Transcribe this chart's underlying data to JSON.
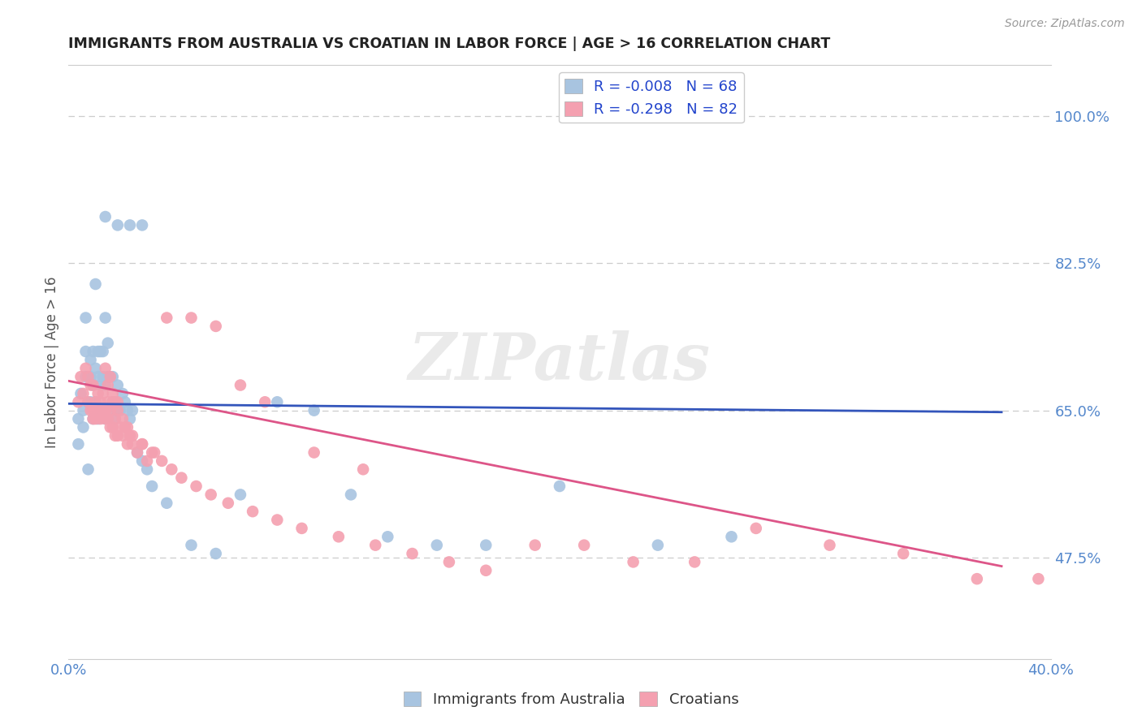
{
  "title": "IMMIGRANTS FROM AUSTRALIA VS CROATIAN IN LABOR FORCE | AGE > 16 CORRELATION CHART",
  "source": "Source: ZipAtlas.com",
  "ylabel": "In Labor Force | Age > 16",
  "xlim": [
    0.0,
    0.4
  ],
  "ylim": [
    0.355,
    1.06
  ],
  "hlines": [
    0.475,
    0.65,
    0.825,
    1.0
  ],
  "hline_color": "#cccccc",
  "background_color": "#ffffff",
  "australia_color": "#a8c4e0",
  "croatian_color": "#f4a0b0",
  "trend_australia_color": "#3355bb",
  "trend_croatian_color": "#dd5588",
  "watermark": "ZIPatlas",
  "aus_trend_x": [
    0.0,
    0.38
  ],
  "aus_trend_y": [
    0.658,
    0.648
  ],
  "cro_trend_x": [
    0.0,
    0.38
  ],
  "cro_trend_y": [
    0.685,
    0.465
  ],
  "australia_x": [
    0.004,
    0.004,
    0.005,
    0.006,
    0.006,
    0.007,
    0.007,
    0.007,
    0.008,
    0.008,
    0.008,
    0.009,
    0.009,
    0.009,
    0.01,
    0.01,
    0.01,
    0.011,
    0.011,
    0.011,
    0.012,
    0.012,
    0.012,
    0.013,
    0.013,
    0.013,
    0.014,
    0.014,
    0.015,
    0.015,
    0.015,
    0.016,
    0.016,
    0.017,
    0.017,
    0.018,
    0.018,
    0.019,
    0.019,
    0.02,
    0.02,
    0.021,
    0.022,
    0.023,
    0.024,
    0.025,
    0.026,
    0.028,
    0.03,
    0.032,
    0.034,
    0.04,
    0.05,
    0.06,
    0.07,
    0.085,
    0.1,
    0.115,
    0.13,
    0.15,
    0.17,
    0.2,
    0.24,
    0.27,
    0.03,
    0.025,
    0.02,
    0.015
  ],
  "australia_y": [
    0.64,
    0.61,
    0.67,
    0.65,
    0.63,
    0.69,
    0.72,
    0.76,
    0.66,
    0.69,
    0.58,
    0.66,
    0.69,
    0.71,
    0.64,
    0.68,
    0.72,
    0.66,
    0.7,
    0.8,
    0.64,
    0.69,
    0.72,
    0.65,
    0.68,
    0.72,
    0.69,
    0.72,
    0.64,
    0.68,
    0.76,
    0.69,
    0.73,
    0.65,
    0.69,
    0.66,
    0.69,
    0.64,
    0.66,
    0.65,
    0.68,
    0.65,
    0.67,
    0.66,
    0.65,
    0.64,
    0.65,
    0.6,
    0.59,
    0.58,
    0.56,
    0.54,
    0.49,
    0.48,
    0.55,
    0.66,
    0.65,
    0.55,
    0.5,
    0.49,
    0.49,
    0.56,
    0.49,
    0.5,
    0.87,
    0.87,
    0.87,
    0.88
  ],
  "croatian_x": [
    0.004,
    0.005,
    0.006,
    0.007,
    0.008,
    0.008,
    0.009,
    0.009,
    0.01,
    0.01,
    0.01,
    0.011,
    0.011,
    0.012,
    0.012,
    0.013,
    0.013,
    0.014,
    0.014,
    0.015,
    0.015,
    0.016,
    0.016,
    0.017,
    0.017,
    0.018,
    0.018,
    0.019,
    0.019,
    0.02,
    0.02,
    0.021,
    0.022,
    0.023,
    0.024,
    0.025,
    0.026,
    0.028,
    0.03,
    0.032,
    0.034,
    0.038,
    0.042,
    0.046,
    0.052,
    0.058,
    0.065,
    0.075,
    0.085,
    0.095,
    0.11,
    0.125,
    0.14,
    0.155,
    0.17,
    0.19,
    0.21,
    0.23,
    0.255,
    0.28,
    0.31,
    0.34,
    0.37,
    0.395,
    0.015,
    0.016,
    0.017,
    0.018,
    0.019,
    0.02,
    0.022,
    0.024,
    0.026,
    0.03,
    0.035,
    0.04,
    0.05,
    0.06,
    0.07,
    0.08,
    0.1,
    0.12
  ],
  "croatian_y": [
    0.66,
    0.69,
    0.67,
    0.7,
    0.66,
    0.69,
    0.65,
    0.68,
    0.65,
    0.68,
    0.64,
    0.66,
    0.64,
    0.67,
    0.65,
    0.64,
    0.66,
    0.65,
    0.67,
    0.65,
    0.64,
    0.66,
    0.64,
    0.65,
    0.63,
    0.66,
    0.63,
    0.64,
    0.62,
    0.65,
    0.62,
    0.63,
    0.62,
    0.63,
    0.61,
    0.62,
    0.61,
    0.6,
    0.61,
    0.59,
    0.6,
    0.59,
    0.58,
    0.57,
    0.56,
    0.55,
    0.54,
    0.53,
    0.52,
    0.51,
    0.5,
    0.49,
    0.48,
    0.47,
    0.46,
    0.49,
    0.49,
    0.47,
    0.47,
    0.51,
    0.49,
    0.48,
    0.45,
    0.45,
    0.7,
    0.68,
    0.69,
    0.67,
    0.66,
    0.66,
    0.64,
    0.63,
    0.62,
    0.61,
    0.6,
    0.76,
    0.76,
    0.75,
    0.68,
    0.66,
    0.6,
    0.58
  ]
}
